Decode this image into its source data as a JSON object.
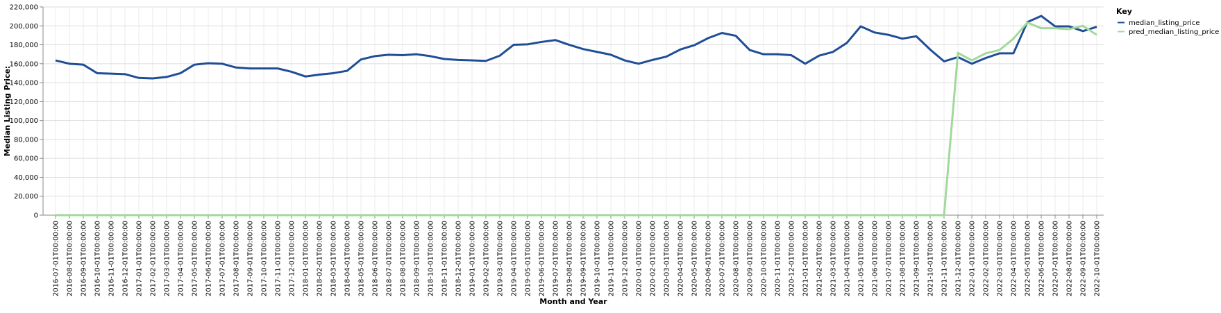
{
  "chart_data": {
    "type": "line",
    "title": "",
    "xlabel": "Month and Year",
    "ylabel": "Median Listing Price:",
    "ylim": [
      0,
      220000
    ],
    "y_ticks": [
      0,
      20000,
      40000,
      60000,
      80000,
      100000,
      120000,
      140000,
      160000,
      180000,
      200000,
      220000
    ],
    "y_tick_labels": [
      "0",
      "20,000",
      "40,000",
      "60,000",
      "80,000",
      "100,000",
      "120,000",
      "140,000",
      "160,000",
      "180,000",
      "200,000",
      "220,000"
    ],
    "grid": true,
    "legend": {
      "title": "Key",
      "placement": "top-right"
    },
    "x": [
      "2016-07-01T00:00:00",
      "2016-08-01T00:00:00",
      "2016-09-01T00:00:00",
      "2016-10-01T00:00:00",
      "2016-11-01T00:00:00",
      "2016-12-01T00:00:00",
      "2017-01-01T00:00:00",
      "2017-02-01T00:00:00",
      "2017-03-01T00:00:00",
      "2017-04-01T00:00:00",
      "2017-05-01T00:00:00",
      "2017-06-01T00:00:00",
      "2017-07-01T00:00:00",
      "2017-08-01T00:00:00",
      "2017-09-01T00:00:00",
      "2017-10-01T00:00:00",
      "2017-11-01T00:00:00",
      "2017-12-01T00:00:00",
      "2018-01-01T00:00:00",
      "2018-02-01T00:00:00",
      "2018-03-01T00:00:00",
      "2018-04-01T00:00:00",
      "2018-05-01T00:00:00",
      "2018-06-01T00:00:00",
      "2018-07-01T00:00:00",
      "2018-08-01T00:00:00",
      "2018-09-01T00:00:00",
      "2018-10-01T00:00:00",
      "2018-11-01T00:00:00",
      "2018-12-01T00:00:00",
      "2019-01-01T00:00:00",
      "2019-02-01T00:00:00",
      "2019-03-01T00:00:00",
      "2019-04-01T00:00:00",
      "2019-05-01T00:00:00",
      "2019-06-01T00:00:00",
      "2019-07-01T00:00:00",
      "2019-08-01T00:00:00",
      "2019-09-01T00:00:00",
      "2019-10-01T00:00:00",
      "2019-11-01T00:00:00",
      "2019-12-01T00:00:00",
      "2020-01-01T00:00:00",
      "2020-02-01T00:00:00",
      "2020-03-01T00:00:00",
      "2020-04-01T00:00:00",
      "2020-05-01T00:00:00",
      "2020-06-01T00:00:00",
      "2020-07-01T00:00:00",
      "2020-08-01T00:00:00",
      "2020-09-01T00:00:00",
      "2020-10-01T00:00:00",
      "2020-11-01T00:00:00",
      "2020-12-01T00:00:00",
      "2021-01-01T00:00:00",
      "2021-02-01T00:00:00",
      "2021-03-01T00:00:00",
      "2021-04-01T00:00:00",
      "2021-05-01T00:00:00",
      "2021-06-01T00:00:00",
      "2021-07-01T00:00:00",
      "2021-08-01T00:00:00",
      "2021-09-01T00:00:00",
      "2021-10-01T00:00:00",
      "2021-11-01T00:00:00",
      "2021-12-01T00:00:00",
      "2022-01-01T00:00:00",
      "2022-02-01T00:00:00",
      "2022-03-01T00:00:00",
      "2022-04-01T00:00:00",
      "2022-05-01T00:00:00",
      "2022-06-01T00:00:00",
      "2022-07-01T00:00:00",
      "2022-08-01T00:00:00",
      "2022-09-01T00:00:00",
      "2022-10-01T00:00:00"
    ],
    "series": [
      {
        "name": "median_listing_price",
        "color": "#1f4e96",
        "values": [
          163500,
          160000,
          159000,
          150000,
          149500,
          149000,
          145000,
          144500,
          146000,
          150000,
          159000,
          160500,
          160000,
          156000,
          155000,
          155000,
          155000,
          151500,
          146500,
          148500,
          150000,
          152500,
          164500,
          168000,
          169500,
          169000,
          170000,
          168000,
          165000,
          164000,
          163500,
          163000,
          168500,
          180000,
          180500,
          183000,
          185000,
          180000,
          175500,
          172500,
          169500,
          163500,
          160000,
          164000,
          167500,
          175000,
          179500,
          187000,
          192500,
          189500,
          174500,
          170000,
          170000,
          169000,
          160000,
          168500,
          172500,
          182000,
          199500,
          193000,
          190500,
          186500,
          189000,
          175000,
          162500,
          167000,
          160000,
          166000,
          171000,
          171000,
          204000,
          210500,
          199500,
          199500,
          194500,
          199000
        ]
      },
      {
        "name": "pred_median_listing_price",
        "color": "#a1d99b",
        "values": [
          0,
          0,
          0,
          0,
          0,
          0,
          0,
          0,
          0,
          0,
          0,
          0,
          0,
          0,
          0,
          0,
          0,
          0,
          0,
          0,
          0,
          0,
          0,
          0,
          0,
          0,
          0,
          0,
          0,
          0,
          0,
          0,
          0,
          0,
          0,
          0,
          0,
          0,
          0,
          0,
          0,
          0,
          0,
          0,
          0,
          0,
          0,
          0,
          0,
          0,
          0,
          0,
          0,
          0,
          0,
          0,
          0,
          0,
          0,
          0,
          0,
          0,
          0,
          0,
          0,
          171500,
          163500,
          171000,
          174500,
          186500,
          203500,
          197500,
          197500,
          196500,
          200000,
          190500
        ]
      }
    ]
  }
}
